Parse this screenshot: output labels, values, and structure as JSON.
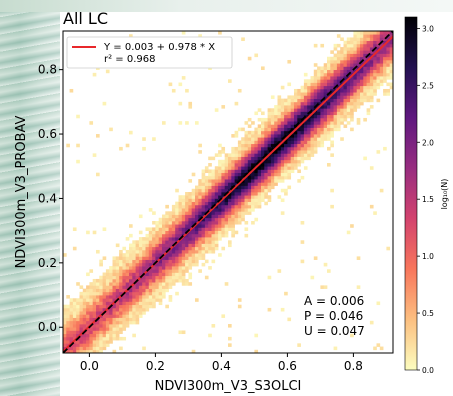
{
  "chart_data": {
    "type": "heatmap",
    "title": "All LC",
    "xlabel": "NDVI300m_V3_S3OLCI",
    "ylabel": "NDVI300m_V3_PROBAV",
    "xlim": [
      -0.08,
      0.92
    ],
    "ylim": [
      -0.08,
      0.92
    ],
    "x_ticks": [
      0.0,
      0.2,
      0.4,
      0.6,
      0.8
    ],
    "x_tick_labels": [
      "0.0",
      "0.2",
      "0.4",
      "0.6",
      "0.8"
    ],
    "y_ticks": [
      0.0,
      0.2,
      0.4,
      0.6,
      0.8
    ],
    "y_tick_labels": [
      "0.0",
      "0.2",
      "0.4",
      "0.6",
      "0.8"
    ],
    "regression": {
      "intercept": 0.003,
      "slope": 0.978,
      "label": "Y = 0.003 + 0.978 * X",
      "r2_label": "r² = 0.968",
      "color": "#e8282b"
    },
    "one_to_one_line": {
      "style": "dashed",
      "color": "#000000"
    },
    "legend_placement": "upper-left",
    "stats": {
      "A": "A = 0.006",
      "P": "P = 0.046",
      "U": "U = 0.047"
    },
    "colorbar": {
      "label": "log₁₀(N)",
      "range": [
        0.0,
        3.1
      ],
      "ticks": [
        0.0,
        0.5,
        1.0,
        1.5,
        2.0,
        2.5,
        3.0
      ],
      "tick_labels": [
        "0.0",
        "0.5",
        "1.0",
        "1.5",
        "2.0",
        "2.5",
        "3.0"
      ],
      "colormap_stops": [
        "#fcfdbf",
        "#fcbf80",
        "#f8765c",
        "#d3436e",
        "#982d80",
        "#5f187f",
        "#221150",
        "#000004"
      ]
    }
  }
}
